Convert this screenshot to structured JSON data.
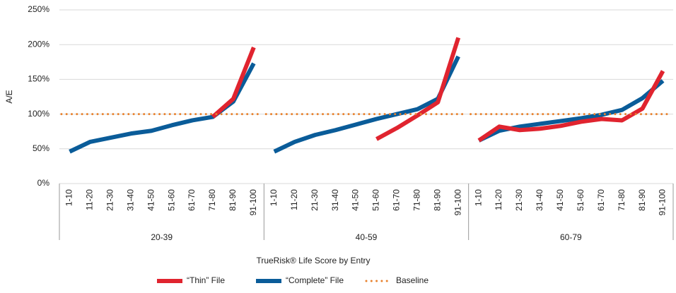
{
  "chart_data": {
    "type": "line",
    "y_label": "A/E",
    "x_label": "TrueRisk® Life Score by Entry",
    "groups": [
      "20-39",
      "40-59",
      "60-79"
    ],
    "categories": [
      "1-10",
      "11-20",
      "21-30",
      "31-40",
      "41-50",
      "51-60",
      "61-70",
      "71-80",
      "81-90",
      "91-100",
      "1-10",
      "11-20",
      "21-30",
      "31-40",
      "41-50",
      "51-60",
      "61-70",
      "71-80",
      "81-90",
      "91-100",
      "1-10",
      "11-20",
      "21-30",
      "31-40",
      "41-50",
      "51-60",
      "61-70",
      "71-80",
      "81-90",
      "91-100"
    ],
    "series": [
      {
        "name": "“Thin” File",
        "color": "#e0242f",
        "style": "solid",
        "values": [
          null,
          null,
          null,
          null,
          null,
          null,
          null,
          96,
          122,
          196,
          null,
          null,
          null,
          null,
          null,
          64,
          80,
          98,
          117,
          210,
          62,
          82,
          77,
          79,
          83,
          89,
          93,
          91,
          108,
          162
        ]
      },
      {
        "name": "“Complete” File",
        "color": "#0a5c99",
        "style": "solid",
        "values": [
          46,
          60,
          66,
          72,
          76,
          84,
          91,
          96,
          118,
          173,
          46,
          60,
          70,
          77,
          85,
          93,
          100,
          107,
          122,
          183,
          62,
          76,
          82,
          86,
          90,
          94,
          99,
          106,
          123,
          148
        ]
      },
      {
        "name": "Baseline",
        "color": "#e8822e",
        "style": "dotted",
        "values": [
          100,
          100,
          100,
          100,
          100,
          100,
          100,
          100,
          100,
          100,
          100,
          100,
          100,
          100,
          100,
          100,
          100,
          100,
          100,
          100,
          100,
          100,
          100,
          100,
          100,
          100,
          100,
          100,
          100,
          100
        ]
      }
    ],
    "ylim": [
      0,
      250
    ],
    "yticks": [
      {
        "value": 0,
        "label": "0%"
      },
      {
        "value": 50,
        "label": "50%"
      },
      {
        "value": 100,
        "label": "100%"
      },
      {
        "value": 150,
        "label": "150%"
      },
      {
        "value": 200,
        "label": "200%"
      },
      {
        "value": 250,
        "label": "250%"
      }
    ],
    "grid": true
  }
}
